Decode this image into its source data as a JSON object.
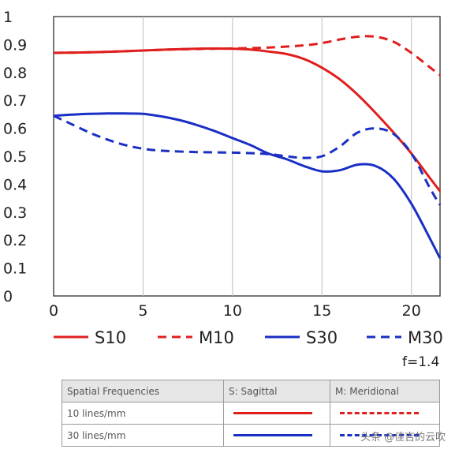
{
  "chart_data": {
    "type": "line",
    "title": "",
    "xlabel": "",
    "ylabel": "",
    "xlim": [
      0,
      21.6
    ],
    "ylim": [
      0,
      1
    ],
    "x_ticks": [
      "0",
      "5",
      "10",
      "15",
      "20"
    ],
    "y_ticks": [
      "0",
      "0.1",
      "0.2",
      "0.3",
      "0.4",
      "0.5",
      "0.6",
      "0.7",
      "0.8",
      "0.9",
      "1"
    ],
    "grid": "vertical",
    "series": [
      {
        "name": "S10",
        "color": "#e01e1e",
        "style": "solid",
        "x": [
          0,
          2,
          4,
          6,
          8,
          10,
          11,
          12,
          13,
          14,
          15,
          16,
          17,
          18,
          19,
          20,
          21,
          21.6
        ],
        "y": [
          0.87,
          0.872,
          0.876,
          0.881,
          0.885,
          0.885,
          0.882,
          0.875,
          0.866,
          0.848,
          0.817,
          0.775,
          0.72,
          0.655,
          0.585,
          0.51,
          0.425,
          0.375
        ]
      },
      {
        "name": "M10",
        "color": "#e01e1e",
        "style": "dashed",
        "x": [
          0,
          2,
          4,
          6,
          8,
          10,
          12,
          14,
          15,
          16,
          17,
          18,
          19,
          20,
          21,
          21.6
        ],
        "y": [
          0.87,
          0.872,
          0.876,
          0.881,
          0.884,
          0.886,
          0.889,
          0.897,
          0.905,
          0.918,
          0.928,
          0.928,
          0.91,
          0.87,
          0.82,
          0.79
        ]
      },
      {
        "name": "S30",
        "color": "#1a2fc4",
        "style": "solid",
        "x": [
          0,
          1,
          2,
          3,
          4,
          5,
          6,
          7,
          8,
          9,
          10,
          11,
          12,
          13,
          14,
          15,
          16,
          17,
          18,
          19,
          20,
          21,
          21.6
        ],
        "y": [
          0.645,
          0.649,
          0.652,
          0.653,
          0.653,
          0.652,
          0.643,
          0.63,
          0.612,
          0.59,
          0.565,
          0.54,
          0.51,
          0.49,
          0.465,
          0.446,
          0.45,
          0.47,
          0.465,
          0.42,
          0.33,
          0.21,
          0.135
        ]
      },
      {
        "name": "M30",
        "color": "#1a2fc4",
        "style": "dashed",
        "x": [
          0,
          1,
          2,
          3,
          4,
          5,
          6,
          8,
          10,
          12,
          13,
          14,
          15,
          16,
          17,
          18,
          19,
          20,
          21,
          21.6
        ],
        "y": [
          0.645,
          0.615,
          0.585,
          0.56,
          0.54,
          0.527,
          0.52,
          0.515,
          0.513,
          0.508,
          0.5,
          0.494,
          0.5,
          0.535,
          0.585,
          0.6,
          0.58,
          0.51,
          0.39,
          0.325
        ]
      }
    ]
  },
  "aperture_label": "f=1.4",
  "table": {
    "headers": [
      "Spatial Frequencies",
      "S: Sagittal",
      "M: Meridional"
    ],
    "rows": [
      {
        "label": "10 lines/mm",
        "color": "#e01e1e"
      },
      {
        "label": "30 lines/mm",
        "color": "#1a2fc4"
      }
    ]
  },
  "watermark": "头条 @佳吉的云吹"
}
